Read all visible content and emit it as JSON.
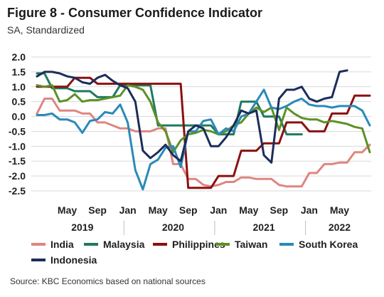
{
  "chart_data": {
    "type": "line",
    "title": "Figure 8 - Consumer Confidence Indicator",
    "subtitle": "SA, Standardized",
    "source": "Source: KBC Economics based on national sources",
    "ylim": [
      -2.5,
      2.0
    ],
    "yticks": [
      "2.0",
      "1.5",
      "1.0",
      "0.5",
      "0.0",
      "-0.5",
      "-1.0",
      "-1.5",
      "-2.0",
      "-2.5"
    ],
    "month_ticks": [
      "May",
      "Sep",
      "Jan",
      "May",
      "Sep",
      "Jan",
      "May",
      "Sep",
      "Jan",
      "May"
    ],
    "year_labels": [
      "2019",
      "2020",
      "2021",
      "2022"
    ],
    "grid": "horizontal",
    "legend_placement": "bottom",
    "x_start": "2019-01",
    "series": [
      {
        "name": "India",
        "color": "#e08580",
        "values": [
          0.1,
          0.6,
          0.6,
          0.2,
          0.2,
          0.2,
          0.1,
          0.1,
          -0.2,
          -0.2,
          -0.3,
          -0.4,
          -0.4,
          -0.5,
          -0.5,
          -0.5,
          -0.4,
          -0.4,
          -1.6,
          -1.6,
          -2.1,
          -2.1,
          -2.3,
          -2.35,
          -2.3,
          -2.2,
          -2.2,
          -2.05,
          -2.05,
          -2.1,
          -2.1,
          -2.1,
          -2.3,
          -2.35,
          -2.35,
          -2.35,
          -1.9,
          -1.9,
          -1.6,
          -1.6,
          -1.55,
          -1.55,
          -1.2,
          -1.2,
          -0.95
        ]
      },
      {
        "name": "Malaysia",
        "color": "#1e7a5e",
        "values": [
          1.45,
          1.45,
          0.95,
          0.95,
          0.95,
          0.85,
          0.85,
          0.85,
          0.65,
          0.65,
          0.65,
          1.05,
          1.05,
          1.05,
          1.05,
          1.05,
          -0.3,
          -0.3,
          -0.3,
          -0.3,
          -0.3,
          -0.3,
          -0.3,
          -0.3,
          -0.6,
          -0.6,
          -0.6,
          0.5,
          0.5,
          0.5,
          0.0,
          0.0,
          0.0,
          -0.6,
          -0.6,
          -0.6,
          null,
          null,
          null,
          null,
          null,
          null,
          null,
          null,
          null
        ]
      },
      {
        "name": "Philippines",
        "color": "#8b1010",
        "values": [
          1.0,
          1.0,
          1.0,
          1.0,
          1.0,
          1.3,
          1.3,
          1.3,
          1.1,
          1.1,
          1.1,
          1.1,
          1.1,
          1.1,
          1.1,
          1.1,
          1.1,
          1.1,
          1.1,
          1.1,
          -2.4,
          -2.4,
          -2.4,
          -2.4,
          -2.0,
          -2.0,
          -2.0,
          -1.15,
          -1.15,
          -1.15,
          -0.9,
          -0.9,
          -0.9,
          -0.2,
          -0.2,
          -0.2,
          -0.5,
          -0.5,
          -0.5,
          0.1,
          0.1,
          0.1,
          0.7,
          0.7,
          0.7
        ]
      },
      {
        "name": "Taiwan",
        "color": "#5c9126",
        "values": [
          1.05,
          1.0,
          1.05,
          0.5,
          0.55,
          0.75,
          0.5,
          0.55,
          0.55,
          0.6,
          0.65,
          0.7,
          1.05,
          1.0,
          0.9,
          0.5,
          -0.2,
          -0.5,
          -1.2,
          -0.8,
          -0.6,
          -0.55,
          -0.45,
          -0.5,
          -0.6,
          -0.5,
          -0.3,
          -0.2,
          0.1,
          0.3,
          0.15,
          0.3,
          -0.45,
          0.3,
          0.1,
          -0.05,
          -0.1,
          -0.1,
          -0.2,
          -0.15,
          -0.2,
          -0.25,
          -0.35,
          -0.4,
          -1.2
        ]
      },
      {
        "name": "South Korea",
        "color": "#2a8ab8",
        "values": [
          0.05,
          0.05,
          0.1,
          -0.1,
          -0.1,
          -0.2,
          -0.55,
          -0.15,
          -0.1,
          0.15,
          0.1,
          0.4,
          -0.2,
          -1.8,
          -2.45,
          -1.6,
          -1.45,
          -1.05,
          -1.0,
          -1.7,
          -0.5,
          -0.5,
          -0.15,
          -0.1,
          -0.6,
          -0.4,
          -0.5,
          0.0,
          0.1,
          0.5,
          0.9,
          0.3,
          0.25,
          0.35,
          0.5,
          0.6,
          0.4,
          0.35,
          0.35,
          0.3,
          0.35,
          0.35,
          0.35,
          0.2,
          -0.3
        ]
      },
      {
        "name": "Indonesia",
        "color": "#1c2d5a",
        "values": [
          1.35,
          1.5,
          1.5,
          1.45,
          1.35,
          1.3,
          1.15,
          1.1,
          1.3,
          1.4,
          1.2,
          1.05,
          0.95,
          0.5,
          -1.15,
          -1.4,
          -1.2,
          -0.95,
          -1.3,
          -1.5,
          -0.5,
          -0.3,
          -0.4,
          -1.0,
          -1.0,
          -0.7,
          -0.3,
          0.2,
          0.1,
          0.2,
          -1.3,
          -1.55,
          0.6,
          0.9,
          0.9,
          1.0,
          0.6,
          0.5,
          0.6,
          0.65,
          1.5,
          1.55,
          null,
          null,
          null
        ]
      }
    ]
  }
}
